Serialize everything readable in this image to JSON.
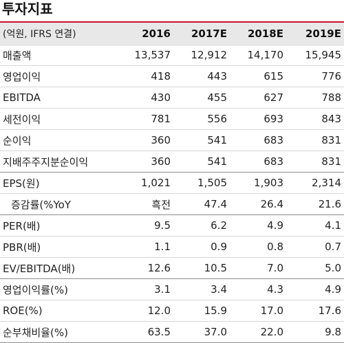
{
  "title": "투자지표",
  "header": {
    "label": "(억원, IFRS 연결)",
    "years": [
      "2016",
      "2017E",
      "2018E",
      "2019E"
    ]
  },
  "rows": [
    {
      "label": "매출액",
      "values": [
        "13,537",
        "12,912",
        "14,170",
        "15,945"
      ]
    },
    {
      "label": "영업이익",
      "values": [
        "418",
        "443",
        "615",
        "776"
      ]
    },
    {
      "label": "EBITDA",
      "values": [
        "430",
        "455",
        "627",
        "788"
      ]
    },
    {
      "label": "세전이익",
      "values": [
        "781",
        "556",
        "693",
        "843"
      ]
    },
    {
      "label": "순이익",
      "values": [
        "360",
        "541",
        "683",
        "831"
      ]
    },
    {
      "label": "지배주주지분순이익",
      "values": [
        "360",
        "541",
        "683",
        "831"
      ]
    },
    {
      "label": "EPS(원)",
      "values": [
        "1,021",
        "1,505",
        "1,903",
        "2,314"
      ]
    },
    {
      "label": "증감률(%YoY",
      "values": [
        "흑전",
        "47.4",
        "26.4",
        "21.6"
      ]
    },
    {
      "label": "PER(배)",
      "values": [
        "9.5",
        "6.2",
        "4.9",
        "4.1"
      ]
    },
    {
      "label": "PBR(배)",
      "values": [
        "1.1",
        "0.9",
        "0.8",
        "0.7"
      ]
    },
    {
      "label": "EV/EBITDA(배)",
      "values": [
        "12.6",
        "10.5",
        "7.0",
        "5.0"
      ]
    },
    {
      "label": "영업이익률(%)",
      "values": [
        "3.1",
        "3.4",
        "4.3",
        "4.9"
      ]
    },
    {
      "label": "ROE(%)",
      "values": [
        "12.0",
        "15.9",
        "17.0",
        "17.6"
      ]
    },
    {
      "label": "순부채비율(%)",
      "values": [
        "63.5",
        "37.0",
        "22.0",
        "9.8"
      ]
    }
  ]
}
